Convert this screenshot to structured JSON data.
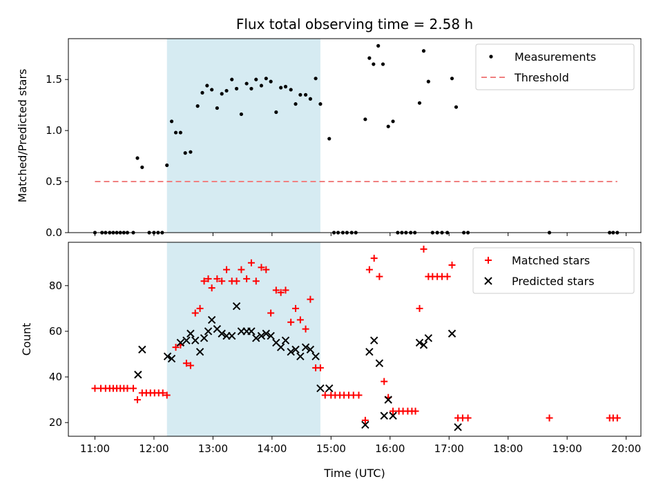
{
  "chart_data": [
    {
      "type": "scatter",
      "title": "Flux total observing time = 2.58 h",
      "xlabel": "",
      "ylabel": "Matched/Predicted stars",
      "ylim": [
        0,
        1.9
      ],
      "yticks": [
        0.0,
        0.5,
        1.0,
        1.5
      ],
      "ytick_labels": [
        "0.0",
        "0.5",
        "1.0",
        "1.5"
      ],
      "xlim": [
        10.55,
        20.25
      ],
      "xticks": [
        11,
        12,
        13,
        14,
        15,
        16,
        17,
        18,
        19,
        20
      ],
      "xtick_labels": [
        "",
        "",
        "",
        "",
        "",
        "",
        "",
        "",
        "",
        ""
      ],
      "shaded_span": [
        12.22,
        14.82
      ],
      "legend_position": "upper right",
      "series": [
        {
          "name": "Measurements",
          "marker": "dot",
          "color": "#000000",
          "x": [
            11.0,
            11.12,
            11.18,
            11.25,
            11.31,
            11.37,
            11.43,
            11.49,
            11.55,
            11.65,
            11.72,
            11.8,
            11.92,
            12.0,
            12.07,
            12.14,
            12.22,
            12.3,
            12.37,
            12.45,
            12.53,
            12.62,
            12.74,
            12.82,
            12.9,
            12.98,
            13.07,
            13.15,
            13.23,
            13.32,
            13.4,
            13.48,
            13.57,
            13.65,
            13.73,
            13.82,
            13.9,
            13.98,
            14.07,
            14.15,
            14.23,
            14.32,
            14.4,
            14.48,
            14.57,
            14.65,
            14.74,
            14.82,
            14.97,
            15.05,
            15.12,
            15.2,
            15.27,
            15.35,
            15.42,
            15.58,
            15.65,
            15.72,
            15.8,
            15.88,
            15.97,
            16.05,
            16.13,
            16.2,
            16.27,
            16.35,
            16.42,
            16.5,
            16.57,
            16.65,
            16.72,
            16.8,
            16.88,
            16.97,
            17.05,
            17.12,
            17.25,
            17.32,
            18.7,
            19.72,
            19.78,
            19.85
          ],
          "y": [
            0.0,
            0.0,
            0.0,
            0.0,
            0.0,
            0.0,
            0.0,
            0.0,
            0.0,
            0.0,
            0.73,
            0.64,
            0.0,
            0.0,
            0.0,
            0.0,
            0.66,
            1.09,
            0.98,
            0.98,
            0.78,
            0.79,
            1.24,
            1.37,
            1.44,
            1.4,
            1.22,
            1.36,
            1.39,
            1.5,
            1.41,
            1.16,
            1.46,
            1.41,
            1.5,
            1.44,
            1.51,
            1.48,
            1.18,
            1.42,
            1.43,
            1.4,
            1.26,
            1.35,
            1.35,
            1.31,
            1.51,
            1.26,
            0.92,
            0.0,
            0.0,
            0.0,
            0.0,
            0.0,
            0.0,
            1.11,
            1.71,
            1.65,
            1.83,
            1.65,
            1.04,
            1.09,
            0.0,
            0.0,
            0.0,
            0.0,
            0.0,
            1.27,
            1.78,
            1.48,
            0.0,
            0.0,
            0.0,
            0.0,
            1.51,
            1.23,
            0.0,
            0.0,
            0.0,
            0.0,
            0.0,
            0.0
          ]
        },
        {
          "name": "Threshold",
          "marker": "dashed-line",
          "color": "#f08080",
          "x": [
            11.0,
            19.85
          ],
          "y": [
            0.5,
            0.5
          ]
        }
      ]
    },
    {
      "type": "scatter",
      "title": "",
      "xlabel": "Time (UTC)",
      "ylabel": "Count",
      "ylim": [
        14,
        99
      ],
      "yticks": [
        20,
        40,
        60,
        80
      ],
      "ytick_labels": [
        "20",
        "40",
        "60",
        "80"
      ],
      "xlim": [
        10.55,
        20.25
      ],
      "xticks": [
        11,
        12,
        13,
        14,
        15,
        16,
        17,
        18,
        19,
        20
      ],
      "xtick_labels": [
        "11:00",
        "12:00",
        "13:00",
        "14:00",
        "15:00",
        "16:00",
        "17:00",
        "18:00",
        "19:00",
        "20:00"
      ],
      "shaded_span": [
        12.22,
        14.82
      ],
      "legend_position": "upper right",
      "series": [
        {
          "name": "Matched stars",
          "marker": "plus",
          "color": "#ff0000",
          "x": [
            11.0,
            11.1,
            11.18,
            11.25,
            11.31,
            11.37,
            11.43,
            11.49,
            11.55,
            11.65,
            11.72,
            11.8,
            11.87,
            11.94,
            12.01,
            12.08,
            12.15,
            12.22,
            12.37,
            12.45,
            12.55,
            12.62,
            12.7,
            12.78,
            12.85,
            12.92,
            12.98,
            13.07,
            13.15,
            13.23,
            13.32,
            13.4,
            13.48,
            13.57,
            13.65,
            13.73,
            13.82,
            13.9,
            13.98,
            14.07,
            14.15,
            14.23,
            14.32,
            14.4,
            14.48,
            14.57,
            14.65,
            14.74,
            14.82,
            14.9,
            15.0,
            15.07,
            15.15,
            15.22,
            15.3,
            15.38,
            15.47,
            15.58,
            15.65,
            15.73,
            15.82,
            15.9,
            15.97,
            16.05,
            16.15,
            16.22,
            16.3,
            16.37,
            16.43,
            16.5,
            16.57,
            16.65,
            16.72,
            16.8,
            16.88,
            16.97,
            17.05,
            17.15,
            17.23,
            17.32,
            18.7,
            19.72,
            19.78,
            19.85
          ],
          "y": [
            35,
            35,
            35,
            35,
            35,
            35,
            35,
            35,
            35,
            35,
            30,
            33,
            33,
            33,
            33,
            33,
            33,
            32,
            53,
            54,
            46,
            45,
            68,
            70,
            82,
            83,
            79,
            83,
            82,
            87,
            82,
            82,
            87,
            83,
            90,
            82,
            88,
            87,
            68,
            78,
            77,
            78,
            64,
            70,
            65,
            61,
            74,
            44,
            44,
            32,
            32,
            32,
            32,
            32,
            32,
            32,
            32,
            21,
            87,
            92,
            84,
            38,
            31,
            25,
            25,
            25,
            25,
            25,
            25,
            70,
            96,
            84,
            84,
            84,
            84,
            84,
            89,
            22,
            22,
            22,
            22,
            22,
            22,
            22
          ]
        },
        {
          "name": "Predicted stars",
          "marker": "x",
          "color": "#000000",
          "x": [
            11.73,
            11.8,
            12.23,
            12.3,
            12.45,
            12.55,
            12.62,
            12.7,
            12.78,
            12.85,
            12.92,
            12.98,
            13.07,
            13.15,
            13.23,
            13.32,
            13.4,
            13.48,
            13.57,
            13.65,
            13.73,
            13.82,
            13.9,
            13.98,
            14.07,
            14.15,
            14.23,
            14.32,
            14.4,
            14.48,
            14.57,
            14.65,
            14.74,
            14.82,
            14.97,
            15.58,
            15.65,
            15.73,
            15.82,
            15.9,
            15.97,
            16.05,
            16.5,
            16.57,
            16.65,
            17.05,
            17.15
          ],
          "y": [
            41,
            52,
            49,
            48,
            55,
            56,
            59,
            56,
            51,
            57,
            60,
            65,
            61,
            59,
            58,
            58,
            71,
            60,
            60,
            60,
            57,
            58,
            59,
            58,
            55,
            53,
            56,
            51,
            52,
            49,
            53,
            52,
            49,
            35,
            35,
            19,
            51,
            56,
            46,
            23,
            30,
            23,
            55,
            54,
            57,
            59,
            18
          ]
        }
      ]
    }
  ]
}
